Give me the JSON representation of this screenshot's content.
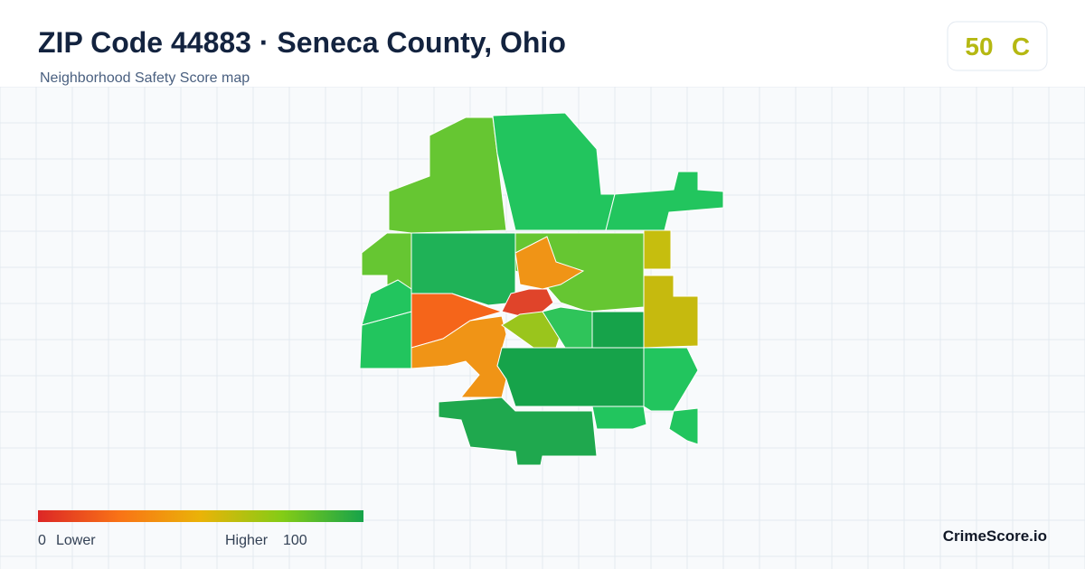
{
  "header": {
    "title": "ZIP Code 44883 · Seneca County, Ohio",
    "subtitle": "Neighborhood Safety Score map",
    "score": "50",
    "grade": "C"
  },
  "legend": {
    "min": "0",
    "min_label": "Lower",
    "max_label": "Higher",
    "max": "100"
  },
  "brand": "CrimeScore.io"
}
